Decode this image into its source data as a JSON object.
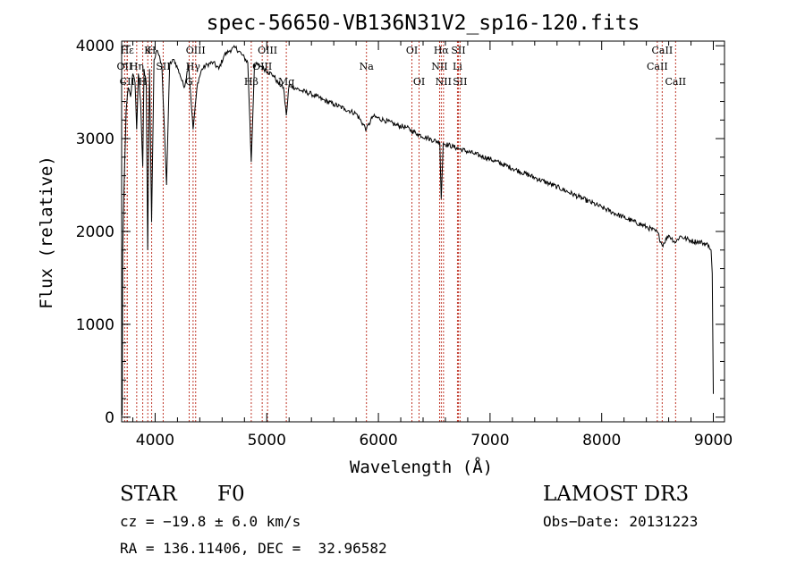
{
  "chart_data": {
    "type": "line",
    "title": "spec-56650-VB136N31V2_sp16-120.fits",
    "xlabel": "Wavelength (Å)",
    "ylabel": "Flux (relative)",
    "xlim": [
      3700,
      9100
    ],
    "ylim": [
      -50,
      4050
    ],
    "xticks": [
      4000,
      5000,
      6000,
      7000,
      8000,
      9000
    ],
    "xtick_labels": [
      "4000",
      "5000",
      "6000",
      "7000",
      "8000",
      "9000"
    ],
    "yticks": [
      0,
      1000,
      2000,
      3000,
      4000
    ],
    "ytick_labels": [
      "0",
      "1000",
      "2000",
      "3000",
      "4000"
    ],
    "series": [
      {
        "name": "spectrum",
        "x": [
          3700,
          3705,
          3710,
          3720,
          3740,
          3760,
          3780,
          3800,
          3820,
          3835,
          3850,
          3870,
          3889,
          3900,
          3920,
          3933,
          3950,
          3968,
          3990,
          4020,
          4060,
          4102,
          4130,
          4170,
          4220,
          4260,
          4300,
          4340,
          4380,
          4420,
          4470,
          4520,
          4570,
          4620,
          4670,
          4720,
          4780,
          4830,
          4861,
          4890,
          4950,
          5010,
          5060,
          5100,
          5150,
          5175,
          5200,
          5300,
          5400,
          5500,
          5600,
          5700,
          5800,
          5893,
          5950,
          6050,
          6150,
          6250,
          6350,
          6450,
          6550,
          6563,
          6580,
          6700,
          6850,
          7000,
          7200,
          7400,
          7600,
          7800,
          8000,
          8200,
          8400,
          8500,
          8542,
          8600,
          8662,
          8700,
          8800,
          8900,
          8960,
          8980,
          8990,
          9000
        ],
        "y": [
          1150,
          20,
          1800,
          2400,
          3300,
          3550,
          3450,
          3700,
          3600,
          3100,
          3700,
          3400,
          2700,
          3750,
          3600,
          1800,
          3750,
          2100,
          3850,
          3950,
          3800,
          2500,
          3800,
          3850,
          3700,
          3550,
          3800,
          3100,
          3600,
          3750,
          3800,
          3820,
          3750,
          3900,
          3950,
          3980,
          3900,
          3820,
          2750,
          3800,
          3780,
          3720,
          3680,
          3600,
          3550,
          3250,
          3580,
          3520,
          3480,
          3420,
          3370,
          3320,
          3270,
          3100,
          3240,
          3200,
          3150,
          3120,
          3050,
          3000,
          2960,
          2350,
          2950,
          2900,
          2840,
          2780,
          2680,
          2580,
          2480,
          2370,
          2260,
          2150,
          2050,
          1990,
          1850,
          1960,
          1880,
          1950,
          1900,
          1880,
          1850,
          1800,
          1550,
          250
        ]
      }
    ],
    "lines": [
      {
        "label": "Hε",
        "wavelength": 3750,
        "row": 1
      },
      {
        "label": "K",
        "wavelength": 3934,
        "row": 1
      },
      {
        "label": "H",
        "wavelength": 3969,
        "row": 1
      },
      {
        "label": "OII",
        "wavelength": 3727,
        "row": 2
      },
      {
        "label": "Hη",
        "wavelength": 3835,
        "row": 2
      },
      {
        "label": "SII",
        "wavelength": 4072,
        "row": 2
      },
      {
        "label": "CII",
        "wavelength": 3750,
        "row": 3
      },
      {
        "label": "H",
        "wavelength": 3889,
        "row": 3
      },
      {
        "label": "OIII",
        "wavelength": 4363,
        "row": 1
      },
      {
        "label": "Hγ",
        "wavelength": 4340,
        "row": 2
      },
      {
        "label": "G",
        "wavelength": 4305,
        "row": 3
      },
      {
        "label": "OIII",
        "wavelength": 5007,
        "row": 1
      },
      {
        "label": "OIII",
        "wavelength": 4959,
        "row": 2
      },
      {
        "label": "Hβ",
        "wavelength": 4861,
        "row": 3
      },
      {
        "label": "Mg",
        "wavelength": 5175,
        "row": 3
      },
      {
        "label": "Na",
        "wavelength": 5893,
        "row": 2
      },
      {
        "label": "OI",
        "wavelength": 6300,
        "row": 1
      },
      {
        "label": "OI",
        "wavelength": 6364,
        "row": 3
      },
      {
        "label": "Hα",
        "wavelength": 6563,
        "row": 1
      },
      {
        "label": "SII",
        "wavelength": 6716,
        "row": 1
      },
      {
        "label": "NII",
        "wavelength": 6548,
        "row": 2
      },
      {
        "label": "Li",
        "wavelength": 6708,
        "row": 2
      },
      {
        "label": "NII",
        "wavelength": 6583,
        "row": 3
      },
      {
        "label": "SII",
        "wavelength": 6731,
        "row": 3
      },
      {
        "label": "CaII",
        "wavelength": 8542,
        "row": 1
      },
      {
        "label": "CaII",
        "wavelength": 8498,
        "row": 2
      },
      {
        "label": "CaII",
        "wavelength": 8662,
        "row": 3
      }
    ]
  },
  "info": {
    "class_label": "STAR",
    "subclass": "F0",
    "survey": "LAMOST DR3",
    "cz": "cz = −19.8 ± 6.0 km/s",
    "obs_date": "Obs−Date: 20131223",
    "coords": "RA = 136.11406, DEC =  32.96582"
  },
  "colors": {
    "line_marker": "#c0392b",
    "spectrum": "#000000",
    "axes": "#000000"
  }
}
